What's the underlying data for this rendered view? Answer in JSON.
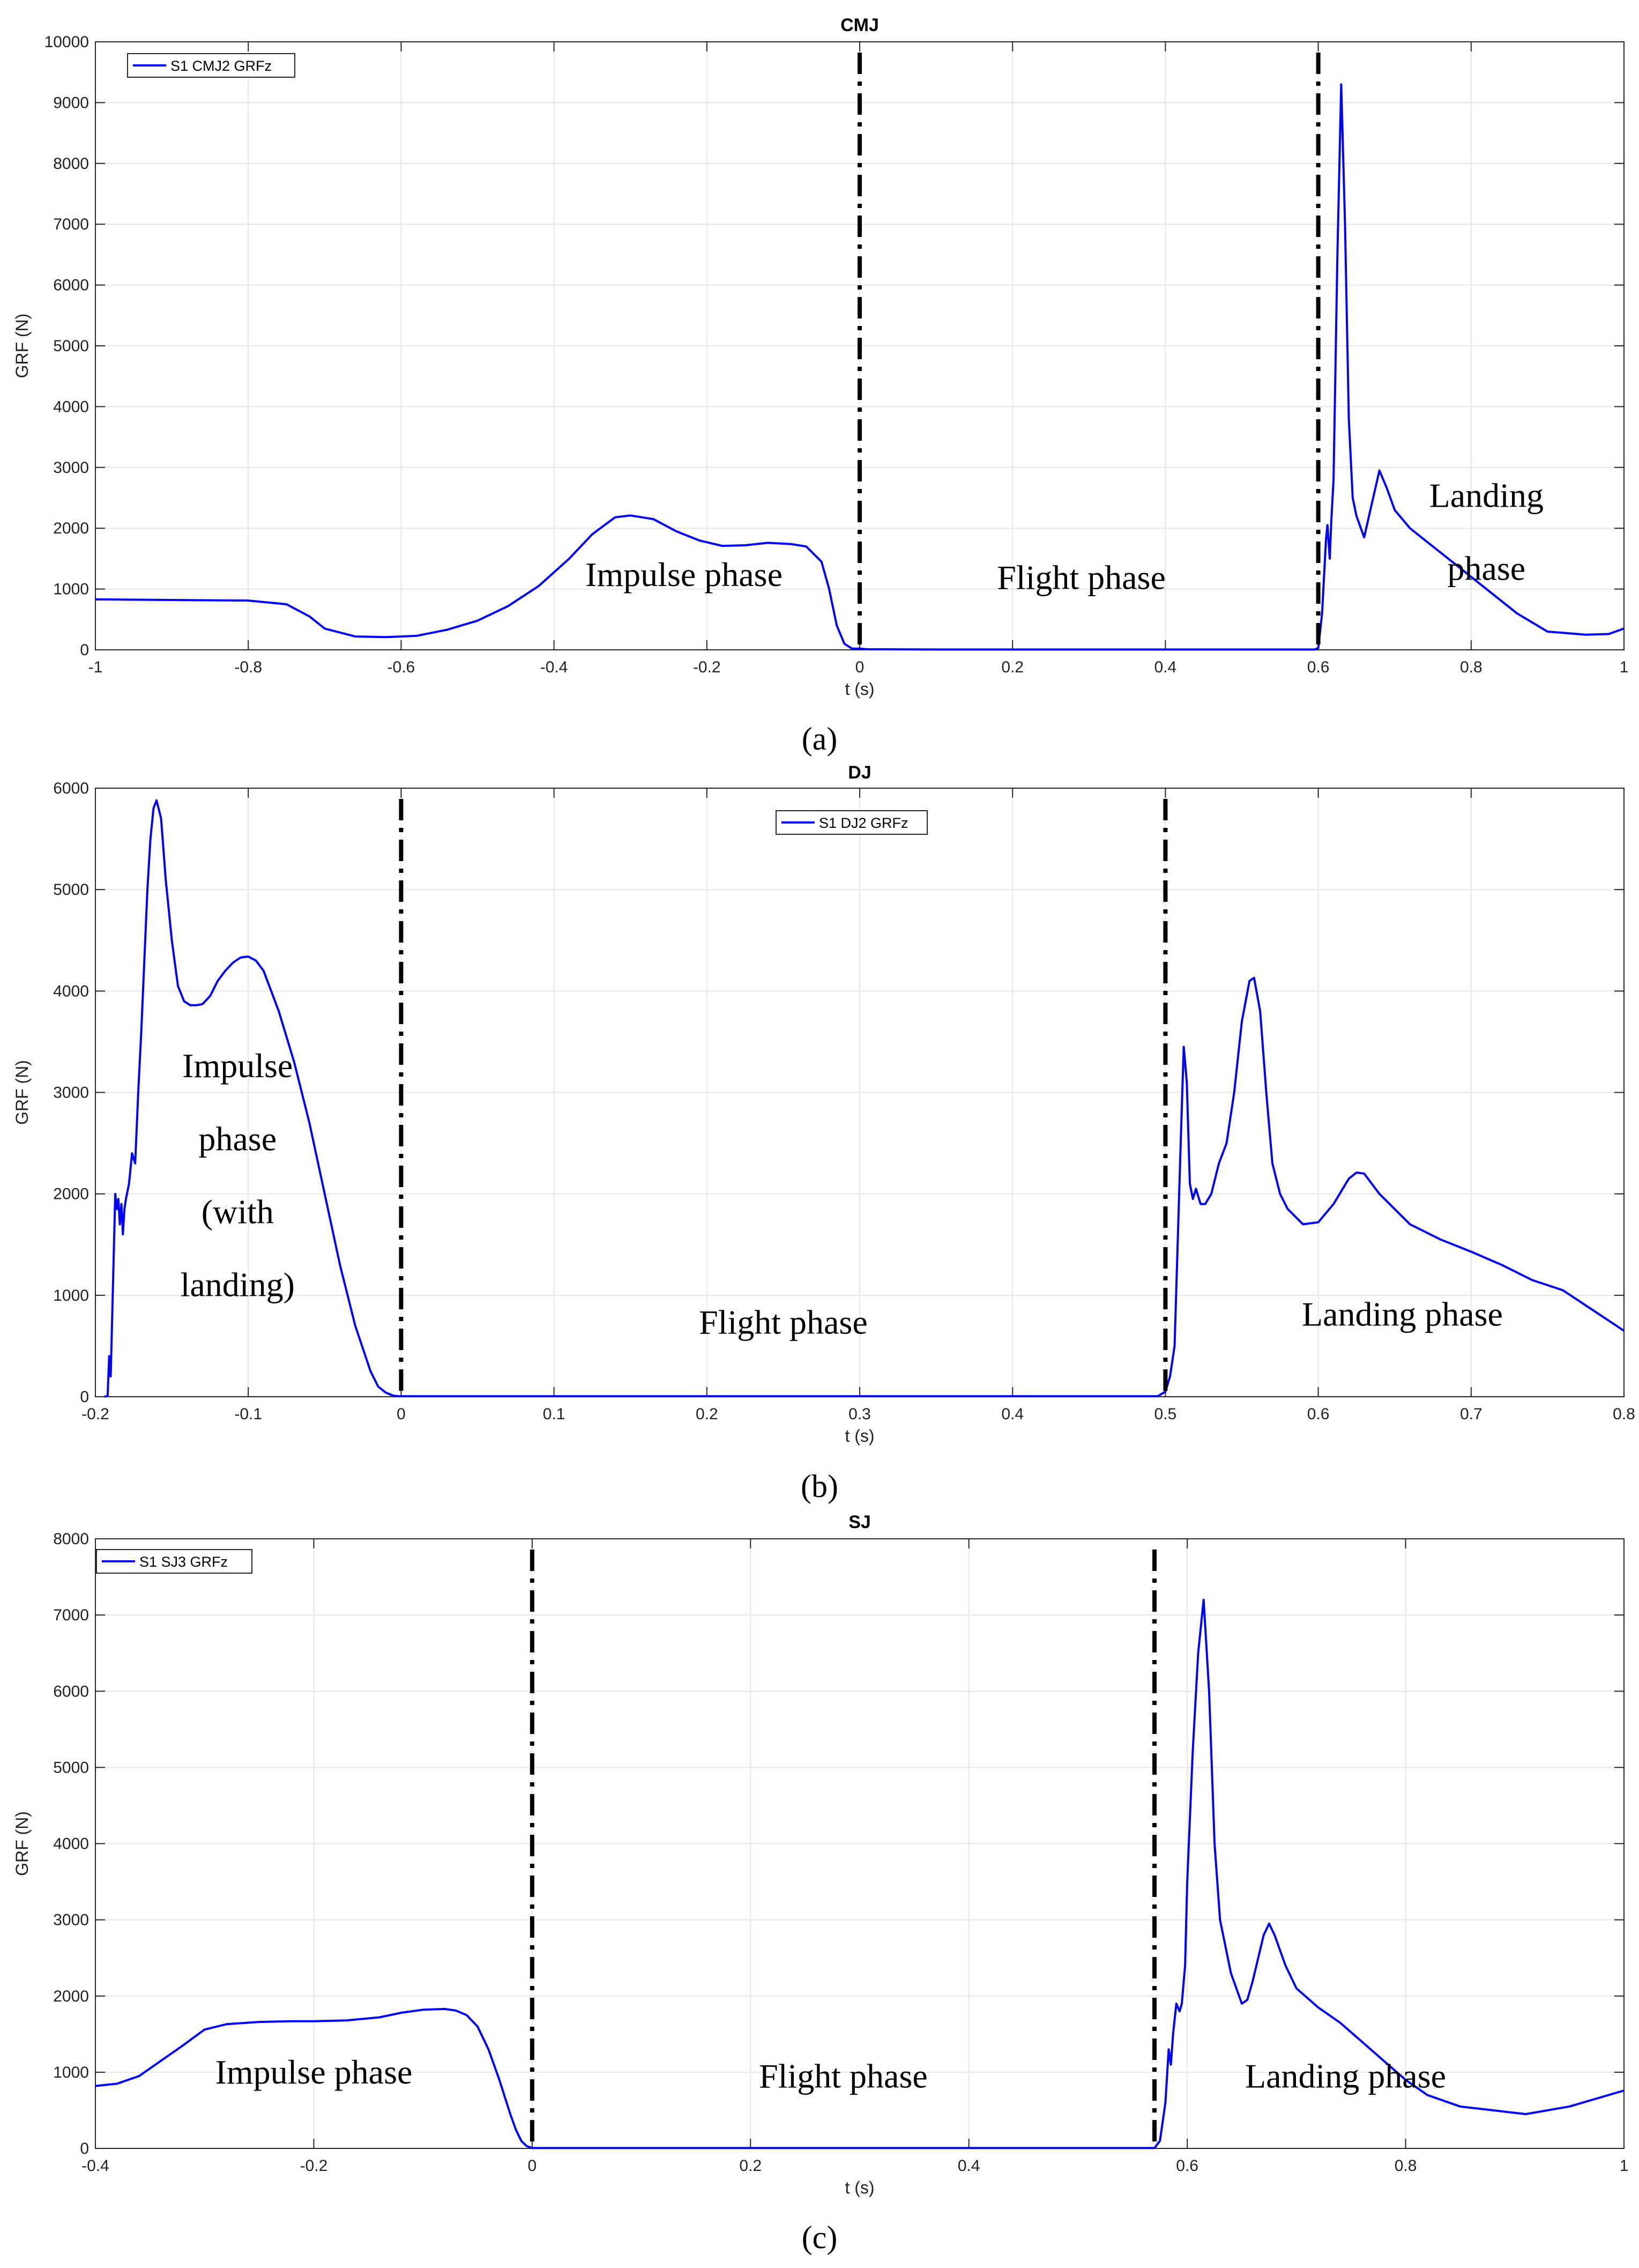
{
  "chart_data": [
    {
      "type": "line",
      "title": "CMJ",
      "xlabel": "t (s)",
      "ylabel": "GRF (N)",
      "xlim": [
        -1,
        1
      ],
      "ylim": [
        0,
        10000
      ],
      "xticks": [
        -1,
        -0.8,
        -0.6,
        -0.4,
        -0.2,
        0,
        0.2,
        0.4,
        0.6,
        0.8,
        1
      ],
      "xtick_labels": [
        "-1",
        "-0.8",
        "-0.6",
        "-0.4",
        "-0.2",
        "0",
        "0.2",
        "0.4",
        "0.6",
        "0.8",
        "1"
      ],
      "yticks": [
        0,
        1000,
        2000,
        3000,
        4000,
        5000,
        6000,
        7000,
        8000,
        9000,
        10000
      ],
      "ytick_labels": [
        "0",
        "1000",
        "2000",
        "3000",
        "4000",
        "5000",
        "6000",
        "7000",
        "8000",
        "9000",
        "10000"
      ],
      "grid": true,
      "legend_position": "top-left",
      "caption": "(a)",
      "series": [
        {
          "name": "S1 CMJ2 GRFz",
          "color": "#0000ff",
          "x": [
            -1,
            -0.9,
            -0.8,
            -0.75,
            -0.72,
            -0.7,
            -0.66,
            -0.62,
            -0.58,
            -0.54,
            -0.5,
            -0.46,
            -0.42,
            -0.38,
            -0.35,
            -0.32,
            -0.3,
            -0.27,
            -0.24,
            -0.21,
            -0.18,
            -0.15,
            -0.12,
            -0.09,
            -0.07,
            -0.05,
            -0.04,
            -0.03,
            -0.02,
            -0.01,
            0,
            0.01,
            0.1,
            0.2,
            0.3,
            0.4,
            0.5,
            0.595,
            0.6,
            0.605,
            0.61,
            0.612,
            0.615,
            0.617,
            0.62,
            0.625,
            0.63,
            0.635,
            0.64,
            0.645,
            0.65,
            0.66,
            0.67,
            0.68,
            0.69,
            0.7,
            0.72,
            0.74,
            0.78,
            0.82,
            0.86,
            0.9,
            0.95,
            0.98,
            1
          ],
          "y": [
            830,
            820,
            810,
            750,
            550,
            350,
            220,
            210,
            230,
            330,
            480,
            720,
            1050,
            1500,
            1900,
            2180,
            2210,
            2150,
            1950,
            1800,
            1710,
            1720,
            1760,
            1740,
            1700,
            1450,
            1000,
            400,
            100,
            20,
            20,
            10,
            5,
            5,
            5,
            5,
            5,
            5,
            30,
            600,
            1800,
            2050,
            1500,
            2100,
            2800,
            6500,
            9300,
            7000,
            3800,
            2500,
            2200,
            1850,
            2400,
            2950,
            2650,
            2300,
            2000,
            1800,
            1400,
            1000,
            600,
            300,
            250,
            260,
            350
          ]
        }
      ],
      "vlines": [
        0,
        0.6
      ],
      "annotations": [
        {
          "text": "Impulse phase",
          "x": -0.23,
          "y": 1050
        },
        {
          "text": "Flight phase",
          "x": 0.29,
          "y": 1000
        },
        {
          "text": "Landing",
          "x": 0.82,
          "y": 2350
        },
        {
          "text": "phase",
          "x": 0.82,
          "y": 1150
        }
      ]
    },
    {
      "type": "line",
      "title": "DJ",
      "xlabel": "t (s)",
      "ylabel": "GRF (N)",
      "xlim": [
        -0.2,
        0.8
      ],
      "ylim": [
        0,
        6000
      ],
      "xticks": [
        -0.2,
        -0.1,
        0,
        0.1,
        0.2,
        0.3,
        0.4,
        0.5,
        0.6,
        0.7,
        0.8
      ],
      "xtick_labels": [
        "-0.2",
        "-0.1",
        "0",
        "0.1",
        "0.2",
        "0.3",
        "0.4",
        "0.5",
        "0.6",
        "0.7",
        "0.8"
      ],
      "yticks": [
        0,
        1000,
        2000,
        3000,
        4000,
        5000,
        6000
      ],
      "ytick_labels": [
        "0",
        "1000",
        "2000",
        "3000",
        "4000",
        "5000",
        "6000"
      ],
      "grid": true,
      "legend_position": "top-center",
      "caption": "(b)",
      "series": [
        {
          "name": "S1 DJ2 GRFz",
          "color": "#0000ff",
          "x": [
            -0.194,
            -0.192,
            -0.191,
            -0.19,
            -0.189,
            -0.188,
            -0.187,
            -0.186,
            -0.185,
            -0.184,
            -0.183,
            -0.182,
            -0.181,
            -0.18,
            -0.178,
            -0.176,
            -0.174,
            -0.172,
            -0.17,
            -0.168,
            -0.166,
            -0.164,
            -0.162,
            -0.16,
            -0.157,
            -0.154,
            -0.15,
            -0.146,
            -0.142,
            -0.138,
            -0.134,
            -0.13,
            -0.125,
            -0.12,
            -0.115,
            -0.11,
            -0.105,
            -0.1,
            -0.095,
            -0.09,
            -0.085,
            -0.08,
            -0.075,
            -0.07,
            -0.06,
            -0.05,
            -0.04,
            -0.03,
            -0.02,
            -0.015,
            -0.01,
            -0.005,
            -0.002,
            0,
            0.1,
            0.2,
            0.3,
            0.4,
            0.495,
            0.5,
            0.503,
            0.506,
            0.508,
            0.51,
            0.512,
            0.514,
            0.516,
            0.518,
            0.52,
            0.523,
            0.526,
            0.53,
            0.535,
            0.54,
            0.545,
            0.55,
            0.555,
            0.558,
            0.562,
            0.566,
            0.57,
            0.575,
            0.58,
            0.59,
            0.6,
            0.61,
            0.62,
            0.625,
            0.63,
            0.64,
            0.66,
            0.68,
            0.7,
            0.72,
            0.74,
            0.76,
            0.78,
            0.8
          ],
          "y": [
            0,
            10,
            400,
            200,
            800,
            1400,
            2000,
            1850,
            1950,
            1700,
            1900,
            1600,
            1850,
            1950,
            2100,
            2400,
            2300,
            3000,
            3600,
            4300,
            5000,
            5500,
            5800,
            5880,
            5700,
            5100,
            4500,
            4050,
            3900,
            3860,
            3860,
            3870,
            3950,
            4100,
            4200,
            4280,
            4330,
            4340,
            4300,
            4200,
            4000,
            3800,
            3550,
            3300,
            2700,
            2000,
            1300,
            700,
            250,
            100,
            40,
            10,
            5,
            5,
            5,
            5,
            5,
            5,
            5,
            50,
            200,
            500,
            1500,
            2500,
            3450,
            3100,
            2100,
            1950,
            2050,
            1900,
            1900,
            2000,
            2300,
            2500,
            3000,
            3700,
            4100,
            4130,
            3800,
            3000,
            2300,
            2000,
            1850,
            1700,
            1720,
            1900,
            2150,
            2210,
            2200,
            2000,
            1700,
            1550,
            1430,
            1300,
            1150,
            1050,
            850,
            650
          ]
        }
      ],
      "vlines": [
        0,
        0.5
      ],
      "annotations": [
        {
          "text": "Impulse",
          "x": -0.107,
          "y": 3150
        },
        {
          "text": "phase",
          "x": -0.107,
          "y": 2430
        },
        {
          "text": "(with",
          "x": -0.107,
          "y": 1710
        },
        {
          "text": "landing)",
          "x": -0.107,
          "y": 990
        },
        {
          "text": "Flight phase",
          "x": 0.25,
          "y": 620
        },
        {
          "text": "Landing phase",
          "x": 0.655,
          "y": 700
        }
      ]
    },
    {
      "type": "line",
      "title": "SJ",
      "xlabel": "t (s)",
      "ylabel": "GRF (N)",
      "xlim": [
        -0.4,
        1
      ],
      "ylim": [
        0,
        8000
      ],
      "xticks": [
        -0.4,
        -0.2,
        0,
        0.2,
        0.4,
        0.6,
        0.8,
        1
      ],
      "xtick_labels": [
        "-0.4",
        "-0.2",
        "0",
        "0.2",
        "0.4",
        "0.6",
        "0.8",
        "1"
      ],
      "yticks": [
        0,
        1000,
        2000,
        3000,
        4000,
        5000,
        6000,
        7000,
        8000
      ],
      "ytick_labels": [
        "0",
        "1000",
        "2000",
        "3000",
        "4000",
        "5000",
        "6000",
        "7000",
        "8000"
      ],
      "grid": true,
      "legend_position": "top-left",
      "caption": "(c)",
      "series": [
        {
          "name": "S1 SJ3 GRFz",
          "color": "#0000ff",
          "x": [
            -0.4,
            -0.38,
            -0.36,
            -0.34,
            -0.32,
            -0.3,
            -0.28,
            -0.25,
            -0.22,
            -0.2,
            -0.17,
            -0.14,
            -0.12,
            -0.1,
            -0.08,
            -0.07,
            -0.06,
            -0.05,
            -0.04,
            -0.03,
            -0.02,
            -0.015,
            -0.01,
            -0.005,
            0,
            0.1,
            0.2,
            0.3,
            0.4,
            0.5,
            0.57,
            0.575,
            0.58,
            0.583,
            0.585,
            0.587,
            0.59,
            0.593,
            0.595,
            0.598,
            0.6,
            0.605,
            0.61,
            0.615,
            0.62,
            0.625,
            0.63,
            0.64,
            0.65,
            0.655,
            0.66,
            0.67,
            0.675,
            0.68,
            0.69,
            0.7,
            0.72,
            0.74,
            0.76,
            0.78,
            0.8,
            0.82,
            0.85,
            0.88,
            0.91,
            0.95,
            1
          ],
          "y": [
            820,
            850,
            950,
            1150,
            1350,
            1560,
            1630,
            1660,
            1670,
            1670,
            1680,
            1720,
            1780,
            1820,
            1830,
            1810,
            1750,
            1600,
            1300,
            900,
            450,
            250,
            100,
            30,
            5,
            5,
            5,
            5,
            5,
            5,
            5,
            100,
            600,
            1300,
            1100,
            1500,
            1900,
            1800,
            1900,
            2400,
            3500,
            5200,
            6500,
            7200,
            6000,
            4000,
            3000,
            2300,
            1900,
            1950,
            2200,
            2800,
            2950,
            2800,
            2400,
            2100,
            1850,
            1650,
            1400,
            1150,
            900,
            700,
            550,
            500,
            450,
            550,
            760
          ]
        }
      ],
      "vlines": [
        0,
        0.57
      ],
      "annotations": [
        {
          "text": "Impulse phase",
          "x": -0.2,
          "y": 850
        },
        {
          "text": "Flight phase",
          "x": 0.285,
          "y": 800
        },
        {
          "text": "Landing phase",
          "x": 0.745,
          "y": 800
        }
      ]
    }
  ]
}
